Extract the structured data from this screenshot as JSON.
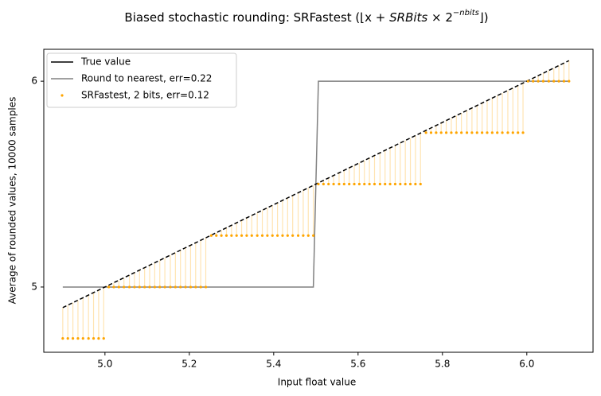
{
  "chart_data": {
    "type": "line",
    "title": "Biased stochastic rounding: SRFastest (⌊x + ",
    "title_math": "SRBits",
    "title_mid": " × 2",
    "title_exponent": "−nbits",
    "title_end": "⌋)",
    "xlabel": "Input float value",
    "ylabel": "Average of rounded values, 10000 samples",
    "xlim": [
      4.855,
      6.157
    ],
    "ylim": [
      4.683,
      6.155
    ],
    "xticks": [
      {
        "value": 5,
        "label": "5.0"
      },
      5.2,
      5.4,
      5.6,
      5.8,
      {
        "value": 6,
        "label": "6.0"
      }
    ],
    "yticks": [
      5,
      6
    ],
    "legend": "upper left",
    "x": [
      4.9,
      4.912,
      4.924,
      4.936,
      4.948,
      4.961,
      4.973,
      4.985,
      4.997,
      5.009,
      5.021,
      5.033,
      5.045,
      5.058,
      5.07,
      5.082,
      5.094,
      5.106,
      5.118,
      5.13,
      5.142,
      5.155,
      5.167,
      5.179,
      5.191,
      5.203,
      5.215,
      5.227,
      5.239,
      5.252,
      5.264,
      5.276,
      5.288,
      5.3,
      5.312,
      5.324,
      5.336,
      5.348,
      5.361,
      5.373,
      5.385,
      5.397,
      5.409,
      5.421,
      5.433,
      5.445,
      5.458,
      5.47,
      5.482,
      5.494,
      5.506,
      5.518,
      5.53,
      5.542,
      5.555,
      5.567,
      5.579,
      5.591,
      5.603,
      5.615,
      5.627,
      5.639,
      5.652,
      5.664,
      5.676,
      5.688,
      5.7,
      5.712,
      5.724,
      5.736,
      5.748,
      5.761,
      5.773,
      5.785,
      5.797,
      5.809,
      5.821,
      5.833,
      5.845,
      5.858,
      5.87,
      5.882,
      5.894,
      5.906,
      5.918,
      5.93,
      5.942,
      5.955,
      5.967,
      5.979,
      5.991,
      6.003,
      6.015,
      6.027,
      6.039,
      6.052,
      6.064,
      6.076,
      6.088,
      6.1
    ],
    "series": [
      {
        "name": "True value",
        "color": "#000000",
        "style": "line",
        "values": [
          4.9,
          4.912,
          4.924,
          4.936,
          4.948,
          4.961,
          4.973,
          4.985,
          4.997,
          5.009,
          5.021,
          5.033,
          5.045,
          5.058,
          5.07,
          5.082,
          5.094,
          5.106,
          5.118,
          5.13,
          5.142,
          5.155,
          5.167,
          5.179,
          5.191,
          5.203,
          5.215,
          5.227,
          5.239,
          5.252,
          5.264,
          5.276,
          5.288,
          5.3,
          5.312,
          5.324,
          5.336,
          5.348,
          5.361,
          5.373,
          5.385,
          5.397,
          5.409,
          5.421,
          5.433,
          5.445,
          5.458,
          5.47,
          5.482,
          5.494,
          5.506,
          5.518,
          5.53,
          5.542,
          5.555,
          5.567,
          5.579,
          5.591,
          5.603,
          5.615,
          5.627,
          5.639,
          5.652,
          5.664,
          5.676,
          5.688,
          5.7,
          5.712,
          5.724,
          5.736,
          5.748,
          5.761,
          5.773,
          5.785,
          5.797,
          5.809,
          5.821,
          5.833,
          5.845,
          5.858,
          5.87,
          5.882,
          5.894,
          5.906,
          5.918,
          5.93,
          5.942,
          5.955,
          5.967,
          5.979,
          5.991,
          6.003,
          6.015,
          6.027,
          6.039,
          6.052,
          6.064,
          6.076,
          6.088,
          6.1
        ]
      },
      {
        "name": "Round to nearest, err=0.22",
        "color": "#808080",
        "style": "line",
        "values": [
          5,
          5,
          5,
          5,
          5,
          5,
          5,
          5,
          5,
          5,
          5,
          5,
          5,
          5,
          5,
          5,
          5,
          5,
          5,
          5,
          5,
          5,
          5,
          5,
          5,
          5,
          5,
          5,
          5,
          5,
          5,
          5,
          5,
          5,
          5,
          5,
          5,
          5,
          5,
          5,
          5,
          5,
          5,
          5,
          5,
          5,
          5,
          5,
          5,
          5,
          6,
          6,
          6,
          6,
          6,
          6,
          6,
          6,
          6,
          6,
          6,
          6,
          6,
          6,
          6,
          6,
          6,
          6,
          6,
          6,
          6,
          6,
          6,
          6,
          6,
          6,
          6,
          6,
          6,
          6,
          6,
          6,
          6,
          6,
          6,
          6,
          6,
          6,
          6,
          6,
          6,
          6,
          6,
          6,
          6,
          6,
          6,
          6,
          6,
          6
        ]
      },
      {
        "name": "SRFastest, 2 bits, err=0.12",
        "color": "#ffa500",
        "style": "points",
        "values": [
          4.75,
          4.75,
          4.75,
          4.75,
          4.75,
          4.75,
          4.75,
          4.75,
          4.75,
          5,
          5,
          5,
          5,
          5,
          5,
          5,
          5,
          5,
          5,
          5,
          5,
          5,
          5,
          5,
          5,
          5,
          5,
          5,
          5,
          5.25,
          5.25,
          5.25,
          5.25,
          5.25,
          5.25,
          5.25,
          5.25,
          5.25,
          5.25,
          5.25,
          5.25,
          5.25,
          5.25,
          5.25,
          5.25,
          5.25,
          5.25,
          5.25,
          5.25,
          5.25,
          5.5,
          5.5,
          5.5,
          5.5,
          5.5,
          5.5,
          5.5,
          5.5,
          5.5,
          5.5,
          5.5,
          5.5,
          5.5,
          5.5,
          5.5,
          5.5,
          5.5,
          5.5,
          5.5,
          5.5,
          5.5,
          5.75,
          5.75,
          5.75,
          5.75,
          5.75,
          5.75,
          5.75,
          5.75,
          5.75,
          5.75,
          5.75,
          5.75,
          5.75,
          5.75,
          5.75,
          5.75,
          5.75,
          5.75,
          5.75,
          5.75,
          6,
          6,
          6,
          6,
          6,
          6,
          6,
          6,
          6
        ]
      }
    ]
  }
}
